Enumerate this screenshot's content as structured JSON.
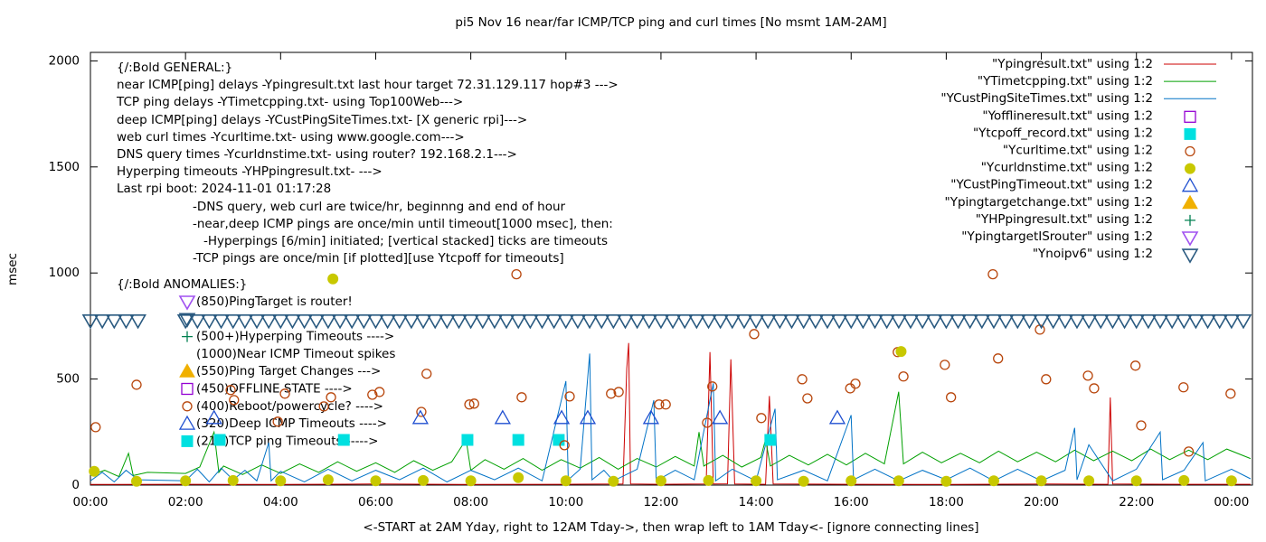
{
  "chart_data": {
    "type": "line",
    "title": "pi5 Nov 16  near/far ICMP/TCP ping and curl times [No msmt 1AM-2AM]",
    "x_label": "<-START at 2AM Yday, right to 12AM Tday->, then wrap left to 1AM Tday<- [ignore connecting lines]",
    "y_label": "msec",
    "xlim": [
      0,
      24.44
    ],
    "xticks": [
      {
        "value": 0,
        "label": "00:00"
      },
      {
        "value": 2,
        "label": "02:00"
      },
      {
        "value": 4,
        "label": "04:00"
      },
      {
        "value": 6,
        "label": "06:00"
      },
      {
        "value": 8,
        "label": "08:00"
      },
      {
        "value": 10,
        "label": "10:00"
      },
      {
        "value": 12,
        "label": "12:00"
      },
      {
        "value": 14,
        "label": "14:00"
      },
      {
        "value": 16,
        "label": "16:00"
      },
      {
        "value": 18,
        "label": "18:00"
      },
      {
        "value": 20,
        "label": "20:00"
      },
      {
        "value": 22,
        "label": "22:00"
      },
      {
        "value": 24,
        "label": "00:00"
      }
    ],
    "ylim": [
      0,
      2040
    ],
    "yticks": [
      0,
      500,
      1000,
      1500,
      2000
    ],
    "grid": false,
    "legend": "top-right",
    "notes": [
      "{/:Bold GENERAL:}",
      "near ICMP[ping] delays -Ypingresult.txt last hour target 72.31.129.117 hop#3 --->",
      "TCP ping delays -YTimetcpping.txt- using Top100Web--->",
      "deep ICMP[ping] delays -YCustPingSiteTimes.txt- [X generic rpi]--->",
      "web curl times -Ycurltime.txt- using www.google.com--->",
      "DNS query times -Ycurldnstime.txt- using router? 192.168.2.1--->",
      "Hyperping timeouts -YHPpingresult.txt- --->",
      "Last rpi boot: 2024-11-01 01:17:28",
      "-DNS query, web curl are twice/hr, beginnng and end of hour",
      "-near,deep ICMP pings are once/min until timeout[1000 msec], then:",
      "-Hyperpings [6/min] initiated; [vertical stacked] ticks are timeouts",
      "-TCP pings are once/min [if plotted][use Ytcpoff for timeouts]",
      "{/:Bold ANOMALIES:}"
    ],
    "anomalies": [
      "(850)PingTarget is router!",
      "(500+)Hyperping Timeouts ---->",
      "(1000)Near ICMP Timeout spikes",
      "(550)Ping Target Changes --->",
      "(450)OFFLINE STATE ---->",
      "(400)Reboot/powercycle? ---->",
      "(320)Deep ICMP Timeouts ---->",
      "(210)TCP ping Timeouts ----->"
    ],
    "series": [
      {
        "name": "\"Ypingresult.txt\" using 1:2",
        "color": "#cc0000",
        "marker": "line",
        "x": [
          0,
          2,
          4,
          6,
          8,
          10,
          11.2,
          11.28,
          11.32,
          11.36,
          12,
          12.95,
          13.03,
          13.1,
          13.4,
          13.47,
          13.55,
          14.2,
          14.28,
          14.36,
          16,
          18,
          20,
          21.4,
          21.45,
          21.5,
          23,
          24.4
        ],
        "values": [
          3,
          4,
          3,
          5,
          3,
          4,
          5,
          550,
          670,
          5,
          4,
          5,
          627,
          5,
          6,
          593,
          5,
          4,
          420,
          5,
          4,
          3,
          5,
          4,
          413,
          5,
          4,
          4
        ]
      },
      {
        "name": "\"YTimetcpping.txt\" using 1:2",
        "color": "#00a000",
        "marker": "line",
        "x": [
          0,
          0.3,
          0.6,
          0.8,
          0.9,
          1.2,
          2.0,
          2.3,
          2.6,
          2.7,
          2.8,
          3.2,
          3.6,
          4.0,
          4.4,
          4.8,
          5.2,
          5.6,
          6.0,
          6.4,
          6.8,
          7.2,
          7.6,
          7.9,
          8.0,
          8.3,
          8.7,
          9.1,
          9.5,
          9.9,
          10.3,
          10.7,
          11.1,
          11.5,
          11.9,
          12.3,
          12.7,
          12.8,
          12.9,
          13.3,
          13.7,
          14.1,
          14.2,
          14.3,
          14.7,
          15.1,
          15.5,
          15.9,
          16.3,
          16.7,
          17.0,
          17.1,
          17.5,
          17.9,
          18.3,
          18.7,
          19.1,
          19.5,
          19.9,
          20.3,
          20.7,
          21.1,
          21.5,
          21.9,
          22.3,
          22.7,
          23.1,
          23.5,
          23.9,
          24.4
        ],
        "values": [
          45,
          70,
          40,
          150,
          45,
          60,
          55,
          85,
          250,
          60,
          90,
          50,
          95,
          55,
          100,
          60,
          110,
          65,
          105,
          60,
          115,
          70,
          110,
          215,
          70,
          120,
          75,
          125,
          70,
          120,
          80,
          130,
          75,
          125,
          85,
          135,
          90,
          250,
          90,
          140,
          85,
          130,
          215,
          90,
          140,
          95,
          145,
          95,
          150,
          100,
          440,
          100,
          155,
          105,
          150,
          105,
          160,
          110,
          155,
          110,
          165,
          115,
          160,
          115,
          170,
          120,
          165,
          120,
          170,
          125
        ]
      },
      {
        "name": "\"YCustPingSiteTimes.txt\" using 1:2",
        "color": "#0072c6",
        "marker": "line",
        "x": [
          0,
          0.25,
          0.5,
          0.75,
          1.0,
          2.0,
          2.25,
          2.5,
          2.75,
          3.0,
          3.25,
          3.5,
          3.75,
          3.8,
          4.0,
          4.5,
          5.0,
          5.5,
          6.0,
          6.5,
          7.0,
          7.5,
          8.0,
          8.5,
          9.0,
          9.5,
          10.0,
          10.05,
          10.3,
          10.5,
          10.55,
          10.8,
          11.0,
          11.5,
          11.85,
          11.9,
          12.3,
          12.7,
          13.1,
          13.15,
          13.5,
          14.0,
          14.4,
          14.45,
          15.0,
          15.5,
          16.0,
          16.05,
          16.5,
          17.0,
          17.5,
          18.0,
          18.5,
          19.0,
          19.5,
          20.0,
          20.5,
          20.7,
          20.75,
          21.0,
          21.5,
          22.0,
          22.5,
          22.55,
          23.0,
          23.4,
          23.45,
          24.0,
          24.4
        ],
        "values": [
          20,
          60,
          15,
          70,
          25,
          20,
          75,
          15,
          80,
          25,
          70,
          20,
          200,
          20,
          65,
          15,
          75,
          20,
          70,
          25,
          80,
          15,
          70,
          25,
          80,
          20,
          490,
          25,
          75,
          620,
          25,
          70,
          20,
          75,
          400,
          20,
          70,
          25,
          480,
          20,
          75,
          20,
          360,
          25,
          70,
          20,
          330,
          25,
          75,
          20,
          70,
          25,
          80,
          20,
          75,
          20,
          70,
          270,
          25,
          190,
          20,
          75,
          250,
          25,
          70,
          200,
          20,
          75,
          30
        ]
      },
      {
        "name": "\"Yofflineresult.txt\" using 1:2",
        "color": "#9400d3",
        "marker": "square-open",
        "x": [],
        "values": []
      },
      {
        "name": "\"Ytcpoff_record.txt\" using 1:2",
        "color": "#00e0e0",
        "marker": "square-filled",
        "x": [
          2.72,
          5.33,
          7.93,
          9.0,
          9.85,
          14.3
        ],
        "values": [
          213,
          213,
          213,
          213,
          213,
          213
        ]
      },
      {
        "name": "\"Ycurltime.txt\" using 1:2",
        "color": "#b8460c",
        "marker": "circle-open",
        "x": [
          0.11,
          0.97,
          2.95,
          3.02,
          3.94,
          4.09,
          4.91,
          5.06,
          5.93,
          6.08,
          6.96,
          7.07,
          7.97,
          8.07,
          8.96,
          9.07,
          9.97,
          10.08,
          10.95,
          11.11,
          11.96,
          12.1,
          12.97,
          13.08,
          13.96,
          14.11,
          14.97,
          15.08,
          15.98,
          16.09,
          16.98,
          17.1,
          17.97,
          18.1,
          18.98,
          19.09,
          19.97,
          20.1,
          20.98,
          21.11,
          21.98,
          22.1,
          22.99,
          23.1,
          23.98
        ],
        "values": [
          273,
          473,
          448,
          401,
          299,
          431,
          371,
          414,
          426,
          439,
          345,
          525,
          380,
          384,
          994,
          414,
          188,
          418,
          431,
          439,
          380,
          380,
          294,
          465,
          712,
          316,
          499,
          409,
          456,
          478,
          627,
          512,
          567,
          414,
          994,
          597,
          733,
          499,
          516,
          456,
          563,
          281,
          461,
          158,
          431
        ]
      },
      {
        "name": "\"Ycurldnstime.txt\" using 1:2",
        "color": "#c8c800",
        "marker": "circle-filled",
        "x": [
          0.08,
          0.97,
          2.0,
          3.0,
          4.0,
          5.0,
          5.1,
          6.0,
          7.0,
          8.0,
          9.0,
          10.0,
          11.0,
          12.0,
          13.0,
          14.0,
          15.0,
          16.0,
          17.0,
          17.05,
          18.0,
          19.0,
          20.0,
          21.0,
          22.0,
          23.0,
          24.0
        ],
        "values": [
          65,
          18,
          20,
          22,
          20,
          25,
          972,
          20,
          22,
          20,
          35,
          20,
          18,
          20,
          22,
          20,
          18,
          20,
          20,
          630,
          18,
          20,
          20,
          20,
          20,
          22,
          20
        ]
      },
      {
        "name": "\"YCustPingTimeout.txt\" using 1:2",
        "color": "#1f4fd0",
        "marker": "triangle-up-open",
        "x": [
          2.6,
          6.94,
          8.67,
          9.91,
          10.46,
          11.79,
          13.24,
          15.71
        ],
        "values": [
          316,
          316,
          316,
          316,
          316,
          316,
          316,
          316
        ]
      },
      {
        "name": "\"Ypingtargetchange.txt\" using 1:2",
        "color": "#f0b000",
        "marker": "triangle-up-filled",
        "x": [],
        "values": []
      },
      {
        "name": "\"YHPpingresult.txt\" using 1:2",
        "color": "#008050",
        "marker": "plus",
        "x": [],
        "values": []
      },
      {
        "name": "\"YpingtargetISrouter\" using 1:2",
        "color": "#a050f0",
        "marker": "triangle-down-open",
        "x": [],
        "values": []
      },
      {
        "name": "\"Ynoipv6\" using 1:2",
        "color": "#2a5a80",
        "marker": "triangle-down-open",
        "x": [
          0,
          0.25,
          0.5,
          0.75,
          1.0,
          2,
          2.25,
          2.5,
          2.75,
          3,
          3.25,
          3.5,
          3.75,
          4,
          4.25,
          4.5,
          4.75,
          5,
          5.25,
          5.5,
          5.75,
          6,
          6.25,
          6.5,
          6.75,
          7,
          7.25,
          7.5,
          7.75,
          8,
          8.25,
          8.5,
          8.75,
          9,
          9.25,
          9.5,
          9.75,
          10,
          10.25,
          10.5,
          10.75,
          11,
          11.25,
          11.5,
          11.75,
          12,
          12.25,
          12.5,
          12.75,
          13,
          13.25,
          13.5,
          13.75,
          14,
          14.25,
          14.5,
          14.75,
          15,
          15.25,
          15.5,
          15.75,
          16,
          16.25,
          16.5,
          16.75,
          17,
          17.25,
          17.5,
          17.75,
          18,
          18.25,
          18.5,
          18.75,
          19,
          19.25,
          19.5,
          19.75,
          20,
          20.25,
          20.5,
          20.75,
          21,
          21.25,
          21.5,
          21.75,
          22,
          22.25,
          22.5,
          22.75,
          23,
          23.25,
          23.5,
          23.75,
          24,
          24.25
        ],
        "values": [
          776,
          776,
          776,
          776,
          776,
          776,
          776,
          776,
          776,
          776,
          776,
          776,
          776,
          776,
          776,
          776,
          776,
          776,
          776,
          776,
          776,
          776,
          776,
          776,
          776,
          776,
          776,
          776,
          776,
          776,
          776,
          776,
          776,
          776,
          776,
          776,
          776,
          776,
          776,
          776,
          776,
          776,
          776,
          776,
          776,
          776,
          776,
          776,
          776,
          776,
          776,
          776,
          776,
          776,
          776,
          776,
          776,
          776,
          776,
          776,
          776,
          776,
          776,
          776,
          776,
          776,
          776,
          776,
          776,
          776,
          776,
          776,
          776,
          776,
          776,
          776,
          776,
          776,
          776,
          776,
          776,
          776,
          776,
          776,
          776,
          776,
          776,
          776,
          776,
          776,
          776,
          776,
          776,
          776,
          776
        ]
      }
    ]
  }
}
